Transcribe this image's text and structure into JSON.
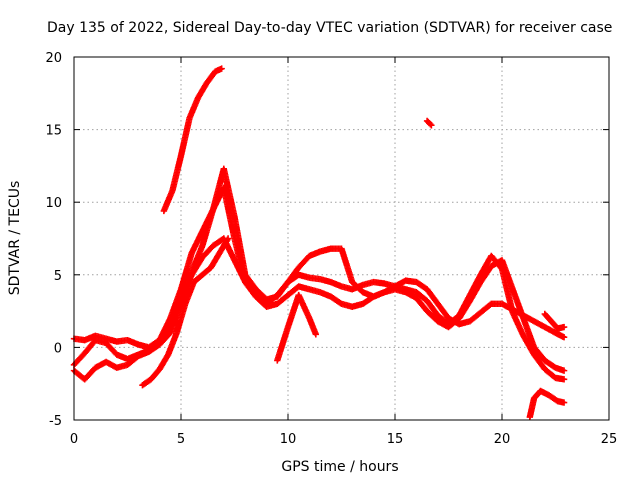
{
  "chart_data": {
    "type": "scatter",
    "title": "Day 135 of 2022, Sidereal Day-to-day VTEC variation (SDTVAR) for receiver case",
    "xlabel": "GPS time / hours",
    "ylabel": "SDTVAR / TECUs",
    "xlim": [
      0,
      25
    ],
    "ylim": [
      -5,
      20
    ],
    "xticks": [
      "0",
      "5",
      "10",
      "15",
      "20",
      "25"
    ],
    "yticks": [
      "-5",
      "0",
      "5",
      "10",
      "15",
      "20"
    ],
    "grid": true,
    "marker": "+",
    "series": [
      {
        "name": "track-1",
        "color": "#ff0000",
        "x": [
          0.0,
          0.5,
          1.0,
          1.5,
          2.0,
          2.5,
          3.0,
          3.5,
          4.0,
          4.5,
          5.0,
          5.5,
          6.0,
          6.5,
          7.0,
          7.5,
          8.0,
          8.5,
          9.0,
          9.5,
          10.0,
          10.5,
          11.0,
          11.5,
          12.0,
          12.5,
          13.0,
          13.5,
          14.0,
          14.5,
          15.0,
          15.5,
          16.0,
          16.5,
          17.0,
          17.5,
          18.0,
          18.5,
          19.0,
          19.5,
          20.0,
          20.5,
          21.0,
          21.5,
          22.0,
          22.5,
          22.9
        ],
        "y": [
          -1.6,
          -2.2,
          -1.4,
          -1.0,
          -1.4,
          -1.2,
          -0.6,
          -0.3,
          0.2,
          1.0,
          3.0,
          5.2,
          7.0,
          9.5,
          12.3,
          9.0,
          5.0,
          4.0,
          3.3,
          3.5,
          4.5,
          5.0,
          4.8,
          4.7,
          4.5,
          4.2,
          4.0,
          4.3,
          4.5,
          4.4,
          4.2,
          4.0,
          3.8,
          3.2,
          2.2,
          1.6,
          2.2,
          3.6,
          5.0,
          6.3,
          5.4,
          2.4,
          0.8,
          -0.5,
          -1.5,
          -2.1,
          -2.2
        ]
      },
      {
        "name": "track-2",
        "color": "#ff0000",
        "x": [
          0.0,
          0.5,
          1.0,
          1.5,
          2.0,
          2.5,
          3.0,
          3.5,
          4.0,
          4.5,
          5.0,
          5.5,
          6.0,
          6.5,
          7.0,
          7.5,
          8.0,
          8.5,
          9.0,
          9.5,
          10.0,
          10.5,
          11.0,
          11.5,
          12.0,
          12.5,
          13.0,
          13.5,
          14.0,
          14.5,
          15.0,
          15.5,
          16.0,
          16.5,
          17.0,
          17.5,
          18.0,
          18.5,
          19.0,
          19.5,
          20.0,
          20.5,
          21.0,
          21.5,
          22.0,
          22.5,
          22.9
        ],
        "y": [
          -1.2,
          -0.4,
          0.5,
          0.3,
          -0.5,
          -0.8,
          -0.5,
          -0.2,
          0.5,
          2.0,
          4.0,
          6.5,
          8.0,
          9.5,
          11.0,
          7.5,
          4.5,
          3.5,
          3.0,
          3.6,
          4.5,
          5.5,
          6.3,
          6.6,
          6.8,
          6.8,
          4.5,
          3.8,
          3.5,
          3.8,
          4.0,
          3.8,
          3.4,
          2.5,
          1.8,
          1.4,
          2.0,
          3.2,
          4.5,
          5.6,
          6.0,
          4.0,
          2.0,
          0.0,
          -0.9,
          -1.4,
          -1.6
        ]
      },
      {
        "name": "track-3",
        "color": "#ff0000",
        "x": [
          0.0,
          0.5,
          1.0,
          1.5,
          2.0,
          2.5,
          3.0,
          3.5,
          4.0,
          4.5,
          5.0,
          5.5,
          6.0,
          6.5,
          7.0,
          7.5,
          8.0,
          8.5,
          9.0,
          9.5,
          10.0,
          10.5,
          11.0,
          11.5,
          12.0,
          12.5,
          13.0,
          13.5,
          14.0,
          14.5,
          15.0,
          15.5,
          16.0,
          16.5,
          17.0,
          17.5,
          18.0,
          18.5,
          19.0,
          19.5,
          20.0,
          20.5,
          21.0,
          21.5,
          22.0,
          22.5,
          22.9
        ],
        "y": [
          0.6,
          0.5,
          0.8,
          0.6,
          0.4,
          0.5,
          0.2,
          0.0,
          0.5,
          1.5,
          3.2,
          5.0,
          6.2,
          7.0,
          7.5,
          6.0,
          4.5,
          3.5,
          2.8,
          3.0,
          3.6,
          4.2,
          4.0,
          3.8,
          3.5,
          3.0,
          2.8,
          3.0,
          3.5,
          3.8,
          4.2,
          4.6,
          4.5,
          4.0,
          3.0,
          2.0,
          1.6,
          1.8,
          2.4,
          3.0,
          3.0,
          2.6,
          2.2,
          1.8,
          1.4,
          1.0,
          0.7
        ]
      },
      {
        "name": "track-4",
        "color": "#ff0000",
        "x": [
          3.2,
          3.6,
          4.0,
          4.4,
          4.8,
          5.2,
          5.6,
          6.0,
          6.4,
          6.8,
          7.2
        ],
        "y": [
          -2.6,
          -2.2,
          -1.5,
          -0.5,
          1.0,
          3.0,
          4.5,
          5.0,
          5.5,
          6.5,
          7.5
        ]
      },
      {
        "name": "track-5",
        "color": "#ff0000",
        "x": [
          4.2,
          4.6,
          5.0,
          5.4,
          5.8,
          6.2,
          6.6,
          6.9
        ],
        "y": [
          9.4,
          10.8,
          13.2,
          15.8,
          17.2,
          18.2,
          19.0,
          19.2
        ]
      },
      {
        "name": "track-6",
        "color": "#ff0000",
        "x": [
          9.5,
          10.0,
          10.5,
          11.0,
          11.3
        ],
        "y": [
          -0.9,
          1.4,
          3.6,
          2.0,
          0.9
        ]
      },
      {
        "name": "track-7",
        "color": "#ff0000",
        "x": [
          16.5,
          16.7
        ],
        "y": [
          15.6,
          15.3
        ]
      },
      {
        "name": "track-8",
        "color": "#ff0000",
        "x": [
          21.3,
          21.5,
          21.8,
          22.2,
          22.6,
          22.9
        ],
        "y": [
          -4.8,
          -3.5,
          -3.0,
          -3.3,
          -3.7,
          -3.8
        ]
      },
      {
        "name": "track-9",
        "color": "#ff0000",
        "x": [
          22.0,
          22.3,
          22.6,
          22.9
        ],
        "y": [
          2.3,
          1.8,
          1.3,
          1.4
        ]
      }
    ]
  }
}
